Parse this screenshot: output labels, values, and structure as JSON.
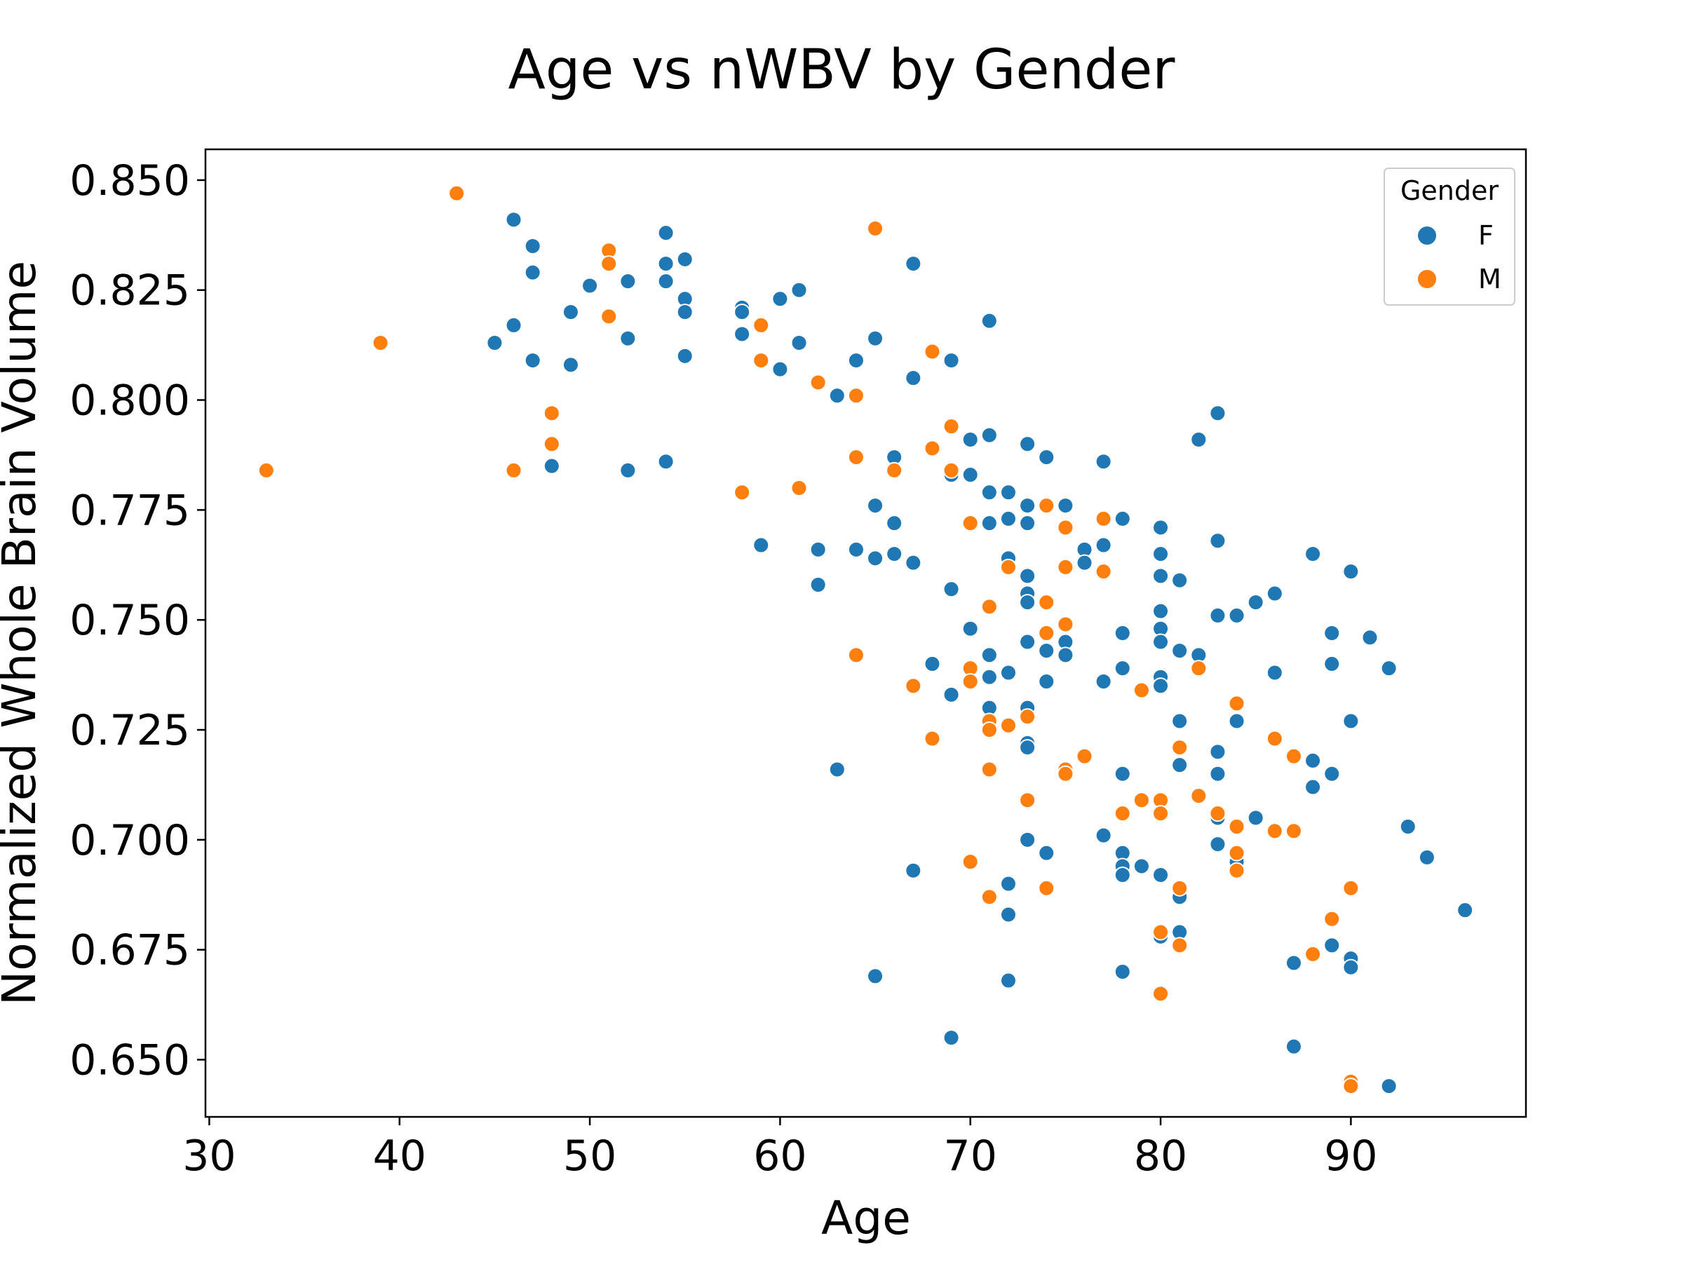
{
  "chart_data": {
    "type": "scatter",
    "title": "Age vs nWBV by Gender",
    "xlabel": "Age",
    "ylabel": "Normalized Whole Brain Volume",
    "xlim": [
      29.8,
      99.2
    ],
    "ylim": [
      0.637,
      0.857
    ],
    "xticks": [
      30,
      40,
      50,
      60,
      70,
      80,
      90
    ],
    "yticks": [
      0.65,
      0.675,
      0.7,
      0.725,
      0.75,
      0.775,
      0.8,
      0.825,
      0.85
    ],
    "xtick_labels": [
      "30",
      "40",
      "50",
      "60",
      "70",
      "80",
      "90"
    ],
    "ytick_labels": [
      "0.650",
      "0.675",
      "0.700",
      "0.725",
      "0.750",
      "0.775",
      "0.800",
      "0.825",
      "0.850"
    ],
    "grid": false,
    "legend": {
      "title": "Gender",
      "placement": "top-right"
    },
    "series": [
      {
        "name": "F",
        "color": "#1f77b4",
        "points": [
          [
            46,
            0.841
          ],
          [
            47,
            0.835
          ],
          [
            47,
            0.829
          ],
          [
            46,
            0.817
          ],
          [
            45,
            0.813
          ],
          [
            47,
            0.809
          ],
          [
            48,
            0.785
          ],
          [
            49,
            0.82
          ],
          [
            49,
            0.808
          ],
          [
            50,
            0.826
          ],
          [
            52,
            0.827
          ],
          [
            52,
            0.814
          ],
          [
            52,
            0.784
          ],
          [
            54,
            0.838
          ],
          [
            54,
            0.831
          ],
          [
            54,
            0.827
          ],
          [
            54,
            0.786
          ],
          [
            55,
            0.832
          ],
          [
            55,
            0.823
          ],
          [
            55,
            0.82
          ],
          [
            55,
            0.81
          ],
          [
            58,
            0.821
          ],
          [
            58,
            0.82
          ],
          [
            58,
            0.815
          ],
          [
            59,
            0.767
          ],
          [
            60,
            0.823
          ],
          [
            60,
            0.807
          ],
          [
            61,
            0.825
          ],
          [
            61,
            0.813
          ],
          [
            62,
            0.766
          ],
          [
            62,
            0.758
          ],
          [
            63,
            0.801
          ],
          [
            63,
            0.716
          ],
          [
            64,
            0.809
          ],
          [
            64,
            0.766
          ],
          [
            65,
            0.814
          ],
          [
            65,
            0.776
          ],
          [
            65,
            0.764
          ],
          [
            65,
            0.669
          ],
          [
            66,
            0.787
          ],
          [
            66,
            0.772
          ],
          [
            66,
            0.765
          ],
          [
            67,
            0.831
          ],
          [
            67,
            0.805
          ],
          [
            67,
            0.763
          ],
          [
            67,
            0.693
          ],
          [
            68,
            0.74
          ],
          [
            69,
            0.809
          ],
          [
            69,
            0.783
          ],
          [
            69,
            0.757
          ],
          [
            69,
            0.733
          ],
          [
            69,
            0.655
          ],
          [
            70,
            0.791
          ],
          [
            70,
            0.783
          ],
          [
            70,
            0.748
          ],
          [
            71,
            0.818
          ],
          [
            71,
            0.792
          ],
          [
            71,
            0.779
          ],
          [
            71,
            0.772
          ],
          [
            71,
            0.742
          ],
          [
            71,
            0.737
          ],
          [
            71,
            0.73
          ],
          [
            72,
            0.779
          ],
          [
            72,
            0.773
          ],
          [
            72,
            0.764
          ],
          [
            72,
            0.738
          ],
          [
            72,
            0.69
          ],
          [
            72,
            0.683
          ],
          [
            72,
            0.668
          ],
          [
            73,
            0.79
          ],
          [
            73,
            0.776
          ],
          [
            73,
            0.772
          ],
          [
            73,
            0.76
          ],
          [
            73,
            0.756
          ],
          [
            73,
            0.754
          ],
          [
            73,
            0.745
          ],
          [
            73,
            0.73
          ],
          [
            73,
            0.722
          ],
          [
            73,
            0.721
          ],
          [
            73,
            0.709
          ],
          [
            73,
            0.7
          ],
          [
            74,
            0.787
          ],
          [
            74,
            0.743
          ],
          [
            74,
            0.736
          ],
          [
            74,
            0.697
          ],
          [
            75,
            0.776
          ],
          [
            75,
            0.745
          ],
          [
            75,
            0.742
          ],
          [
            76,
            0.766
          ],
          [
            76,
            0.763
          ],
          [
            77,
            0.786
          ],
          [
            77,
            0.767
          ],
          [
            77,
            0.736
          ],
          [
            77,
            0.701
          ],
          [
            78,
            0.773
          ],
          [
            78,
            0.747
          ],
          [
            78,
            0.739
          ],
          [
            78,
            0.715
          ],
          [
            78,
            0.697
          ],
          [
            78,
            0.694
          ],
          [
            78,
            0.692
          ],
          [
            78,
            0.67
          ],
          [
            79,
            0.694
          ],
          [
            80,
            0.771
          ],
          [
            80,
            0.765
          ],
          [
            80,
            0.76
          ],
          [
            80,
            0.752
          ],
          [
            80,
            0.748
          ],
          [
            80,
            0.745
          ],
          [
            80,
            0.737
          ],
          [
            80,
            0.735
          ],
          [
            80,
            0.692
          ],
          [
            80,
            0.678
          ],
          [
            81,
            0.759
          ],
          [
            81,
            0.743
          ],
          [
            81,
            0.727
          ],
          [
            81,
            0.717
          ],
          [
            81,
            0.687
          ],
          [
            81,
            0.679
          ],
          [
            82,
            0.791
          ],
          [
            82,
            0.742
          ],
          [
            83,
            0.797
          ],
          [
            83,
            0.768
          ],
          [
            83,
            0.751
          ],
          [
            83,
            0.72
          ],
          [
            83,
            0.715
          ],
          [
            83,
            0.705
          ],
          [
            83,
            0.699
          ],
          [
            84,
            0.751
          ],
          [
            84,
            0.727
          ],
          [
            84,
            0.695
          ],
          [
            85,
            0.754
          ],
          [
            85,
            0.705
          ],
          [
            86,
            0.756
          ],
          [
            86,
            0.738
          ],
          [
            87,
            0.672
          ],
          [
            87,
            0.653
          ],
          [
            88,
            0.765
          ],
          [
            88,
            0.718
          ],
          [
            88,
            0.712
          ],
          [
            89,
            0.747
          ],
          [
            89,
            0.74
          ],
          [
            89,
            0.715
          ],
          [
            89,
            0.676
          ],
          [
            90,
            0.761
          ],
          [
            90,
            0.727
          ],
          [
            90,
            0.673
          ],
          [
            90,
            0.671
          ],
          [
            91,
            0.746
          ],
          [
            92,
            0.739
          ],
          [
            92,
            0.644
          ],
          [
            93,
            0.703
          ],
          [
            94,
            0.696
          ],
          [
            96,
            0.684
          ]
        ]
      },
      {
        "name": "M",
        "color": "#ff7f0e",
        "points": [
          [
            33,
            0.784
          ],
          [
            39,
            0.813
          ],
          [
            43,
            0.847
          ],
          [
            46,
            0.784
          ],
          [
            48,
            0.797
          ],
          [
            48,
            0.79
          ],
          [
            51,
            0.834
          ],
          [
            51,
            0.831
          ],
          [
            51,
            0.819
          ],
          [
            58,
            0.779
          ],
          [
            59,
            0.817
          ],
          [
            59,
            0.809
          ],
          [
            61,
            0.78
          ],
          [
            62,
            0.804
          ],
          [
            64,
            0.801
          ],
          [
            64,
            0.787
          ],
          [
            64,
            0.742
          ],
          [
            65,
            0.839
          ],
          [
            66,
            0.784
          ],
          [
            67,
            0.735
          ],
          [
            68,
            0.811
          ],
          [
            68,
            0.789
          ],
          [
            68,
            0.723
          ],
          [
            69,
            0.794
          ],
          [
            69,
            0.784
          ],
          [
            70,
            0.772
          ],
          [
            70,
            0.739
          ],
          [
            70,
            0.736
          ],
          [
            70,
            0.695
          ],
          [
            71,
            0.753
          ],
          [
            71,
            0.727
          ],
          [
            71,
            0.725
          ],
          [
            71,
            0.716
          ],
          [
            71,
            0.687
          ],
          [
            72,
            0.762
          ],
          [
            72,
            0.726
          ],
          [
            73,
            0.728
          ],
          [
            73,
            0.709
          ],
          [
            74,
            0.776
          ],
          [
            74,
            0.754
          ],
          [
            74,
            0.747
          ],
          [
            74,
            0.689
          ],
          [
            75,
            0.771
          ],
          [
            75,
            0.762
          ],
          [
            75,
            0.749
          ],
          [
            75,
            0.716
          ],
          [
            75,
            0.715
          ],
          [
            76,
            0.719
          ],
          [
            77,
            0.773
          ],
          [
            77,
            0.761
          ],
          [
            78,
            0.706
          ],
          [
            79,
            0.734
          ],
          [
            79,
            0.709
          ],
          [
            80,
            0.709
          ],
          [
            80,
            0.706
          ],
          [
            80,
            0.679
          ],
          [
            80,
            0.665
          ],
          [
            81,
            0.721
          ],
          [
            81,
            0.689
          ],
          [
            81,
            0.676
          ],
          [
            82,
            0.739
          ],
          [
            82,
            0.71
          ],
          [
            83,
            0.706
          ],
          [
            84,
            0.731
          ],
          [
            84,
            0.703
          ],
          [
            84,
            0.697
          ],
          [
            84,
            0.693
          ],
          [
            86,
            0.723
          ],
          [
            86,
            0.702
          ],
          [
            87,
            0.719
          ],
          [
            87,
            0.702
          ],
          [
            88,
            0.674
          ],
          [
            89,
            0.682
          ],
          [
            90,
            0.689
          ],
          [
            90,
            0.645
          ],
          [
            90,
            0.644
          ]
        ]
      }
    ]
  }
}
